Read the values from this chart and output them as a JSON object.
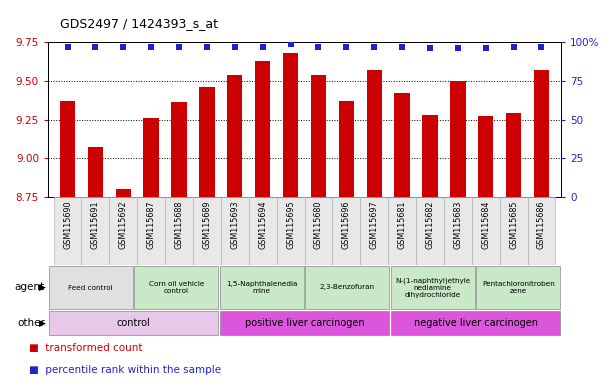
{
  "title": "GDS2497 / 1424393_s_at",
  "samples": [
    "GSM115690",
    "GSM115691",
    "GSM115692",
    "GSM115687",
    "GSM115688",
    "GSM115689",
    "GSM115693",
    "GSM115694",
    "GSM115695",
    "GSM115680",
    "GSM115696",
    "GSM115697",
    "GSM115681",
    "GSM115682",
    "GSM115683",
    "GSM115684",
    "GSM115685",
    "GSM115686"
  ],
  "bar_values": [
    9.37,
    9.07,
    8.8,
    9.26,
    9.36,
    9.46,
    9.54,
    9.63,
    9.68,
    9.54,
    9.37,
    9.57,
    9.42,
    9.28,
    9.5,
    9.27,
    9.29,
    9.57
  ],
  "percentile_values": [
    97,
    97,
    97,
    97,
    97,
    97,
    97,
    97,
    99,
    97,
    97,
    97,
    97,
    96,
    96,
    96,
    97,
    97
  ],
  "bar_color": "#cc0000",
  "percentile_color": "#2222cc",
  "ylim_left": [
    8.75,
    9.75
  ],
  "ylim_right": [
    0,
    100
  ],
  "yticks_left": [
    8.75,
    9.0,
    9.25,
    9.5,
    9.75
  ],
  "yticks_right": [
    0,
    25,
    50,
    75,
    100
  ],
  "agent_groups": [
    {
      "label": "Feed control",
      "start": 0,
      "end": 3,
      "color": "#e0e0e0"
    },
    {
      "label": "Corn oil vehicle\ncontrol",
      "start": 3,
      "end": 6,
      "color": "#c8e8c8"
    },
    {
      "label": "1,5-Naphthalenedia\nmine",
      "start": 6,
      "end": 9,
      "color": "#c8e8c8"
    },
    {
      "label": "2,3-Benzofuran",
      "start": 9,
      "end": 12,
      "color": "#c8e8c8"
    },
    {
      "label": "N-(1-naphthyl)ethyle\nnediamine\ndihydrochloride",
      "start": 12,
      "end": 15,
      "color": "#c8e8c8"
    },
    {
      "label": "Pentachloronitroben\nzene",
      "start": 15,
      "end": 18,
      "color": "#c8e8c8"
    }
  ],
  "other_groups": [
    {
      "label": "control",
      "start": 0,
      "end": 6,
      "color": "#e8c8e8"
    },
    {
      "label": "positive liver carcinogen",
      "start": 6,
      "end": 12,
      "color": "#dd55dd"
    },
    {
      "label": "negative liver carcinogen",
      "start": 12,
      "end": 18,
      "color": "#dd55dd"
    }
  ]
}
